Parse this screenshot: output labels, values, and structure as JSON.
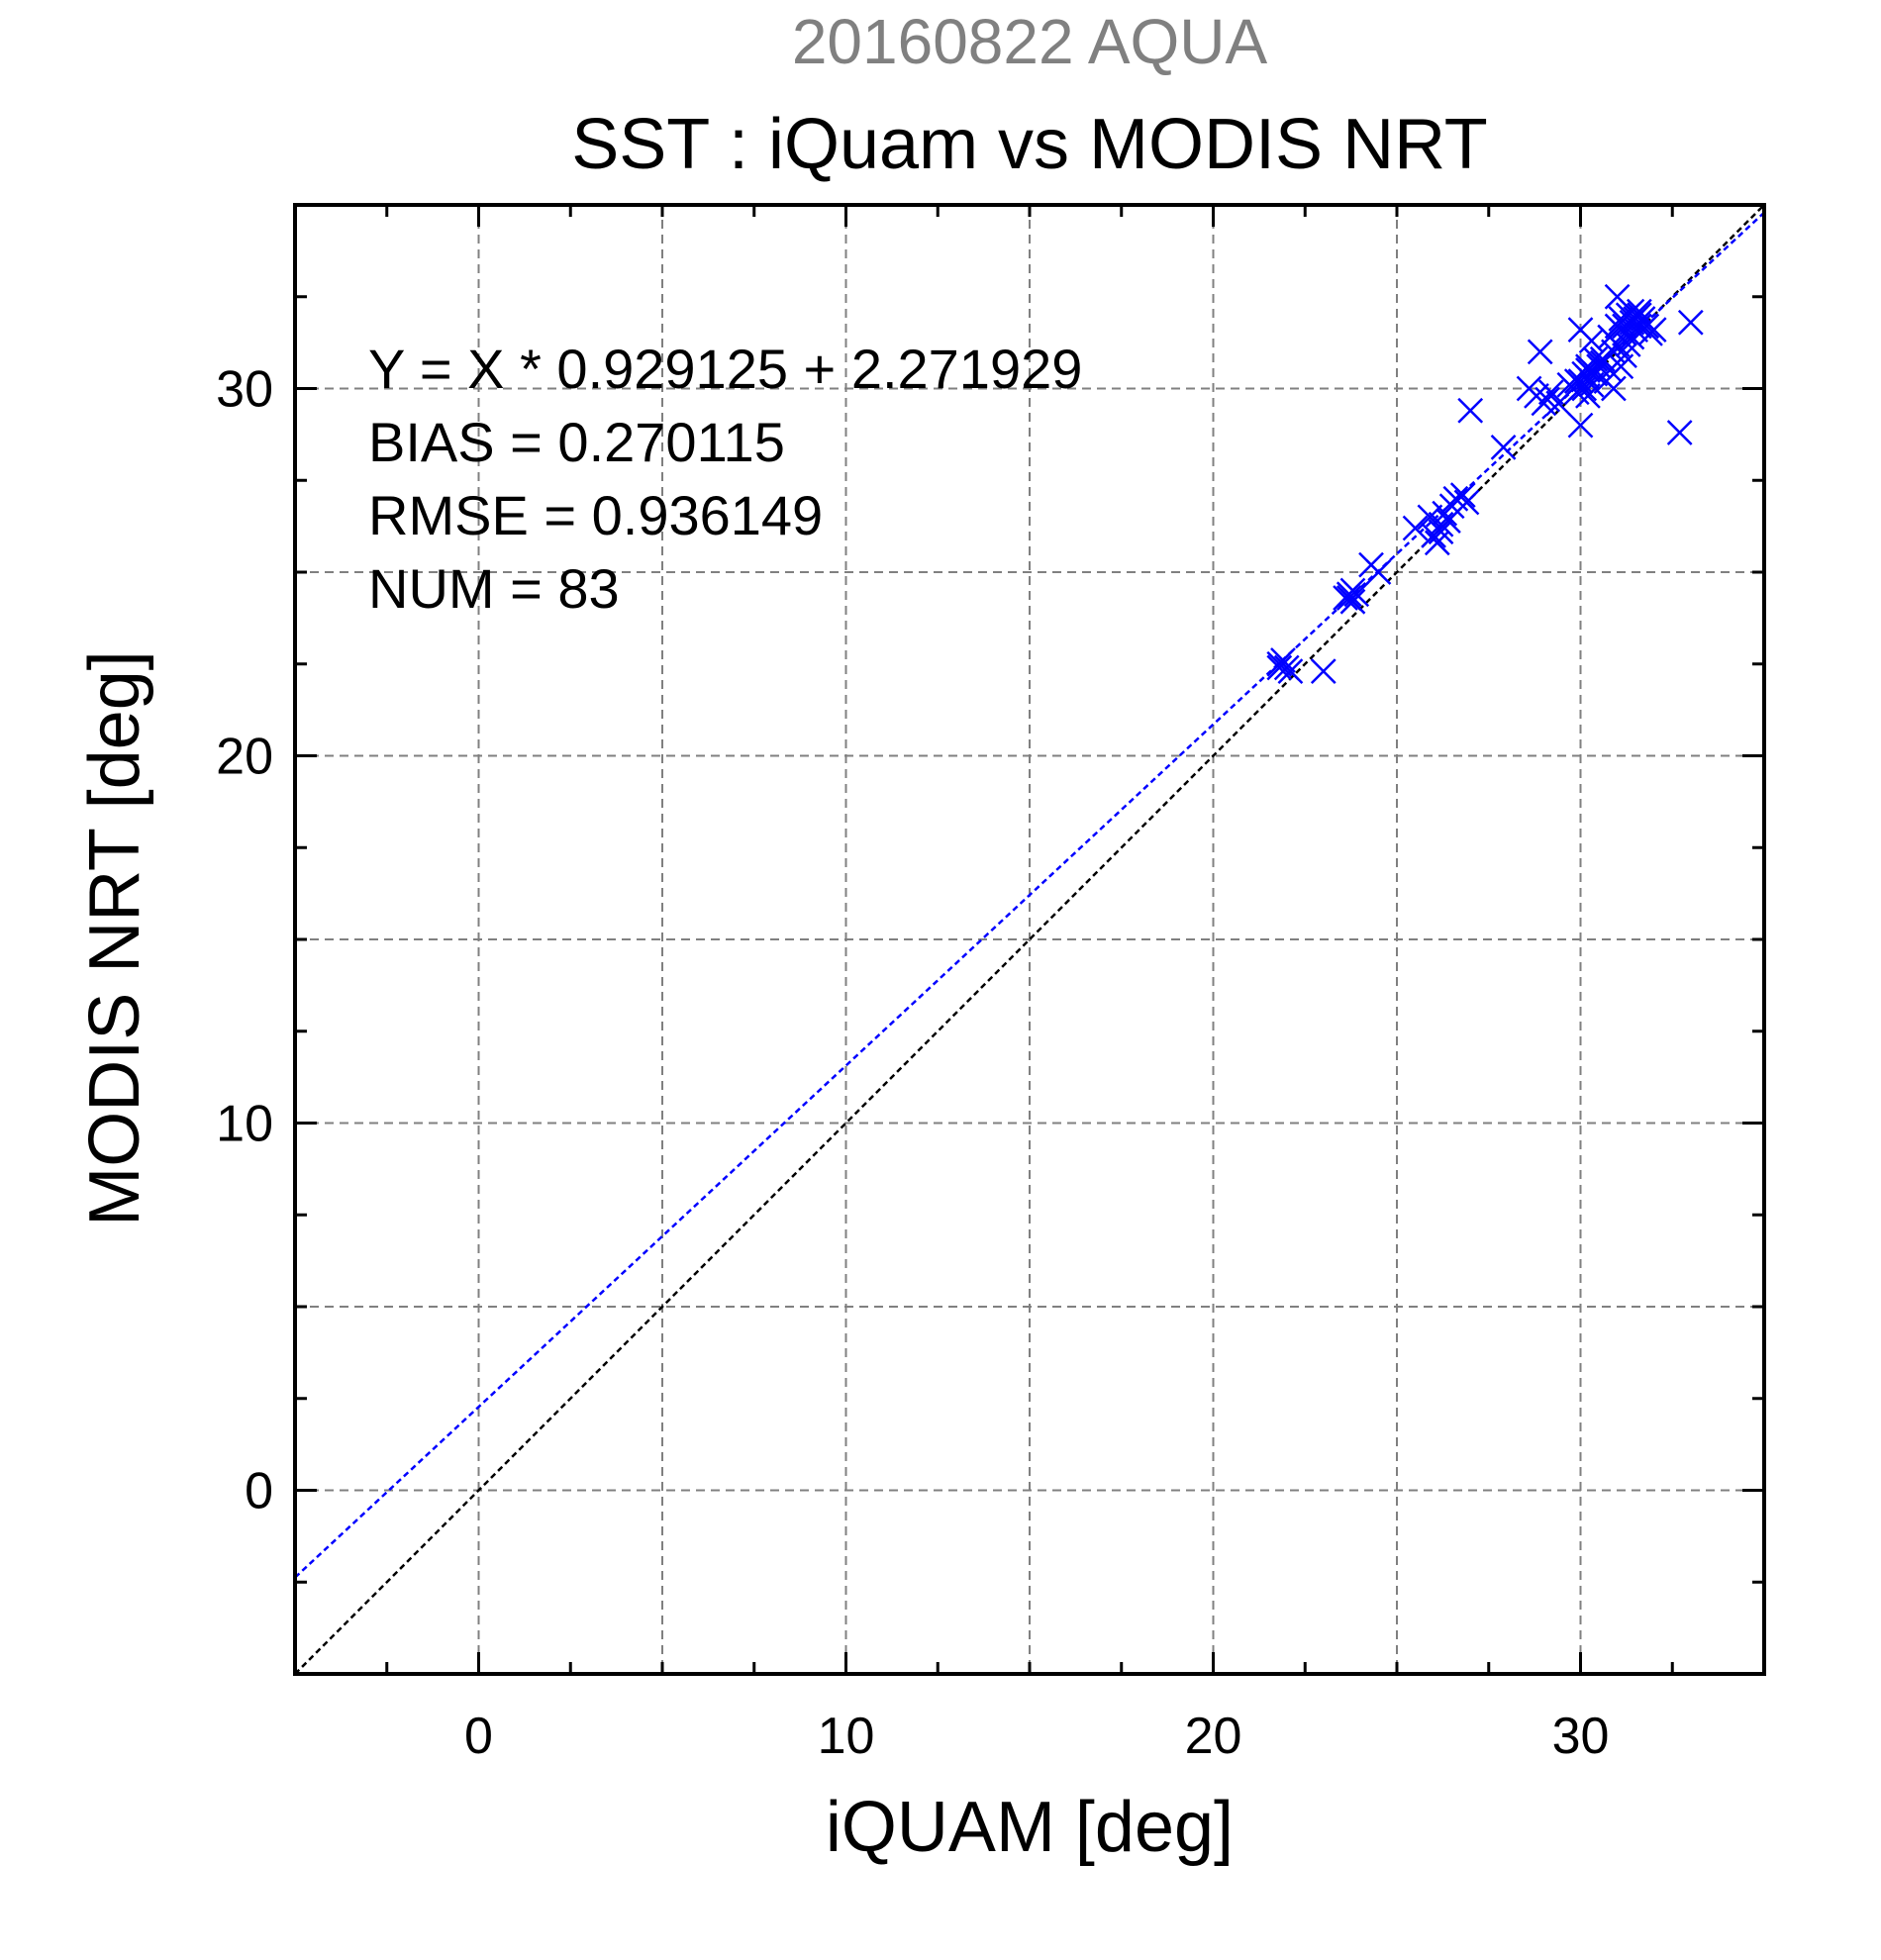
{
  "chart_data": {
    "type": "scatter",
    "suptitle": "20160822 AQUA",
    "title": "SST : iQuam vs MODIS NRT",
    "xlabel": "iQUAM [deg]",
    "ylabel": "MODIS NRT [deg]",
    "xlim": [
      -5,
      35
    ],
    "ylim": [
      -5,
      35
    ],
    "xticks": [
      0,
      10,
      20,
      30
    ],
    "yticks": [
      0,
      10,
      20,
      30
    ],
    "xtick_labels": [
      "0",
      "10",
      "20",
      "30"
    ],
    "ytick_labels": [
      "0",
      "10",
      "20",
      "30"
    ],
    "grid": true,
    "annotations": [
      "Y = X * 0.929125 + 2.271929",
      "BIAS = 0.270115",
      "RMSE = 0.936149",
      "NUM = 83"
    ],
    "fit_line": {
      "slope": 0.929125,
      "intercept": 2.271929,
      "color": "#0000ff"
    },
    "identity_line": {
      "slope": 1,
      "intercept": 0,
      "color": "#000000"
    },
    "series": [
      {
        "marker": "x",
        "color": "#0000ff",
        "points": [
          [
            21.8,
            22.5
          ],
          [
            21.9,
            22.6
          ],
          [
            22.0,
            22.4
          ],
          [
            21.8,
            22.4
          ],
          [
            22.1,
            22.3
          ],
          [
            23.0,
            22.3
          ],
          [
            23.6,
            24.3
          ],
          [
            23.7,
            24.4
          ],
          [
            23.8,
            24.2
          ],
          [
            23.7,
            24.3
          ],
          [
            23.9,
            24.4
          ],
          [
            23.8,
            24.5
          ],
          [
            24.3,
            25.2
          ],
          [
            24.5,
            25.0
          ],
          [
            25.5,
            26.2
          ],
          [
            25.9,
            26.5
          ],
          [
            26.0,
            26.0
          ],
          [
            26.1,
            25.8
          ],
          [
            26.2,
            26.3
          ],
          [
            26.3,
            26.6
          ],
          [
            26.2,
            26.1
          ],
          [
            26.5,
            26.8
          ],
          [
            26.4,
            26.4
          ],
          [
            26.6,
            27.0
          ],
          [
            26.8,
            27.1
          ],
          [
            26.9,
            26.9
          ],
          [
            27.0,
            29.4
          ],
          [
            27.9,
            28.4
          ],
          [
            28.6,
            30.0
          ],
          [
            28.8,
            29.8
          ],
          [
            28.9,
            31.0
          ],
          [
            29.0,
            29.6
          ],
          [
            29.1,
            29.7
          ],
          [
            29.2,
            29.9
          ],
          [
            29.4,
            29.6
          ],
          [
            29.7,
            30.1
          ],
          [
            29.9,
            29.9
          ],
          [
            30.0,
            29.0
          ],
          [
            30.0,
            30.2
          ],
          [
            30.1,
            30.4
          ],
          [
            30.0,
            31.6
          ],
          [
            30.2,
            30.5
          ],
          [
            30.3,
            30.1
          ],
          [
            30.4,
            30.8
          ],
          [
            30.1,
            30.0
          ],
          [
            30.2,
            30.3
          ],
          [
            30.5,
            30.6
          ],
          [
            30.3,
            31.3
          ],
          [
            30.6,
            30.7
          ],
          [
            30.7,
            30.2
          ],
          [
            30.8,
            31.4
          ],
          [
            30.9,
            31.0
          ],
          [
            31.0,
            32.5
          ],
          [
            31.0,
            31.7
          ],
          [
            31.1,
            31.9
          ],
          [
            31.2,
            31.5
          ],
          [
            31.3,
            32.0
          ],
          [
            31.4,
            31.8
          ],
          [
            31.5,
            31.6
          ],
          [
            31.6,
            32.1
          ],
          [
            31.7,
            31.9
          ],
          [
            31.8,
            31.7
          ],
          [
            31.9,
            31.5
          ],
          [
            32.0,
            31.6
          ],
          [
            31.1,
            30.6
          ],
          [
            31.2,
            30.9
          ],
          [
            31.3,
            31.2
          ],
          [
            31.4,
            31.4
          ],
          [
            31.5,
            31.9
          ],
          [
            31.6,
            31.7
          ],
          [
            32.7,
            28.8
          ],
          [
            33.0,
            31.8
          ],
          [
            29.9,
            30.2
          ],
          [
            30.2,
            30.6
          ],
          [
            30.4,
            30.4
          ],
          [
            30.6,
            30.8
          ],
          [
            30.8,
            30.5
          ],
          [
            30.9,
            30.0
          ],
          [
            30.2,
            29.8
          ],
          [
            31.0,
            31.2
          ],
          [
            31.2,
            31.7
          ],
          [
            31.4,
            32.1
          ],
          [
            31.6,
            32.0
          ]
        ]
      }
    ]
  }
}
